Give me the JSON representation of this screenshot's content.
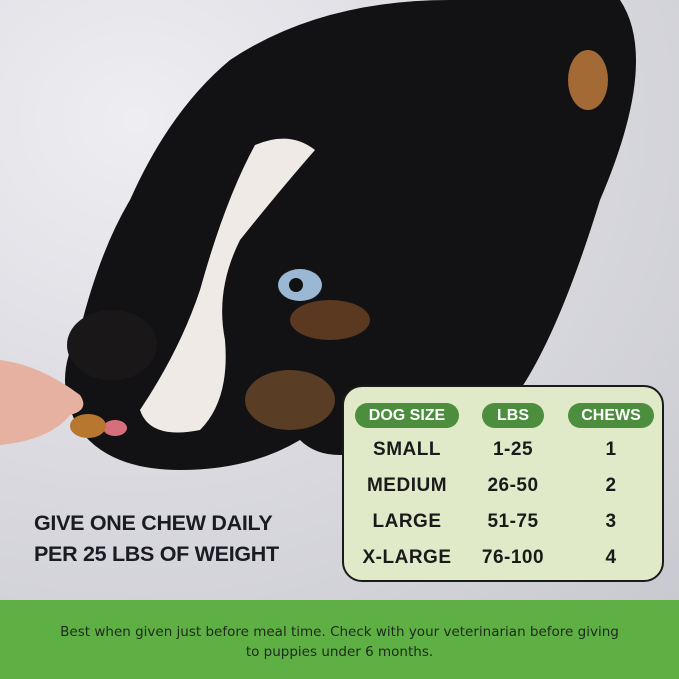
{
  "headline": {
    "line1": "GIVE ONE CHEW DAILY",
    "line2": "PER 25 LBS OF WEIGHT"
  },
  "table": {
    "headers": [
      "DOG SIZE",
      "LBS",
      "CHEWS"
    ],
    "rows": [
      [
        "SMALL",
        "1-25",
        "1"
      ],
      [
        "MEDIUM",
        "26-50",
        "2"
      ],
      [
        "LARGE",
        "51-75",
        "3"
      ],
      [
        "X-LARGE",
        "76-100",
        "4"
      ]
    ]
  },
  "footer_note": "Best when given just before meal time. Check with your veterinarian before giving to puppies under 6 months.",
  "colors": {
    "band": "#5fb044",
    "pill": "#4c8e3d",
    "table_bg": "#e1eac8"
  }
}
